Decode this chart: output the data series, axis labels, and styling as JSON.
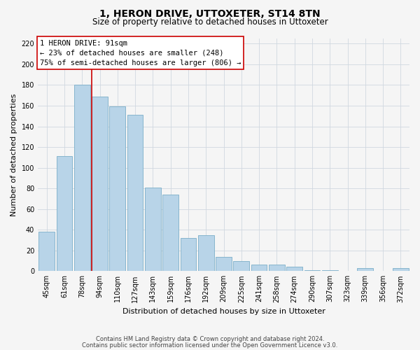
{
  "title": "1, HERON DRIVE, UTTOXETER, ST14 8TN",
  "subtitle": "Size of property relative to detached houses in Uttoxeter",
  "xlabel": "Distribution of detached houses by size in Uttoxeter",
  "ylabel": "Number of detached properties",
  "footnote1": "Contains HM Land Registry data © Crown copyright and database right 2024.",
  "footnote2": "Contains public sector information licensed under the Open Government Licence v3.0.",
  "bar_labels": [
    "45sqm",
    "61sqm",
    "78sqm",
    "94sqm",
    "110sqm",
    "127sqm",
    "143sqm",
    "159sqm",
    "176sqm",
    "192sqm",
    "209sqm",
    "225sqm",
    "241sqm",
    "258sqm",
    "274sqm",
    "290sqm",
    "307sqm",
    "323sqm",
    "339sqm",
    "356sqm",
    "372sqm"
  ],
  "bar_values": [
    38,
    111,
    180,
    169,
    159,
    151,
    81,
    74,
    32,
    35,
    14,
    10,
    6,
    6,
    4,
    1,
    1,
    0,
    3,
    0,
    3
  ],
  "bar_color": "#b8d4e8",
  "bar_edge_color": "#7aaec8",
  "grid_color": "#d0d8e0",
  "annotation_box_edgecolor": "#cc0000",
  "annotation_box_facecolor": "#ffffff",
  "red_line_color": "#cc0000",
  "annotation_title": "1 HERON DRIVE: 91sqm",
  "annotation_line1": "← 23% of detached houses are smaller (248)",
  "annotation_line2": "75% of semi-detached houses are larger (806) →",
  "property_line_index": 3,
  "ylim": [
    0,
    225
  ],
  "yticks": [
    0,
    20,
    40,
    60,
    80,
    100,
    120,
    140,
    160,
    180,
    200,
    220
  ],
  "background_color": "#f5f5f5",
  "title_fontsize": 10,
  "subtitle_fontsize": 8.5,
  "axis_label_fontsize": 8,
  "tick_fontsize": 7,
  "footnote_fontsize": 6,
  "annotation_fontsize": 7.5
}
